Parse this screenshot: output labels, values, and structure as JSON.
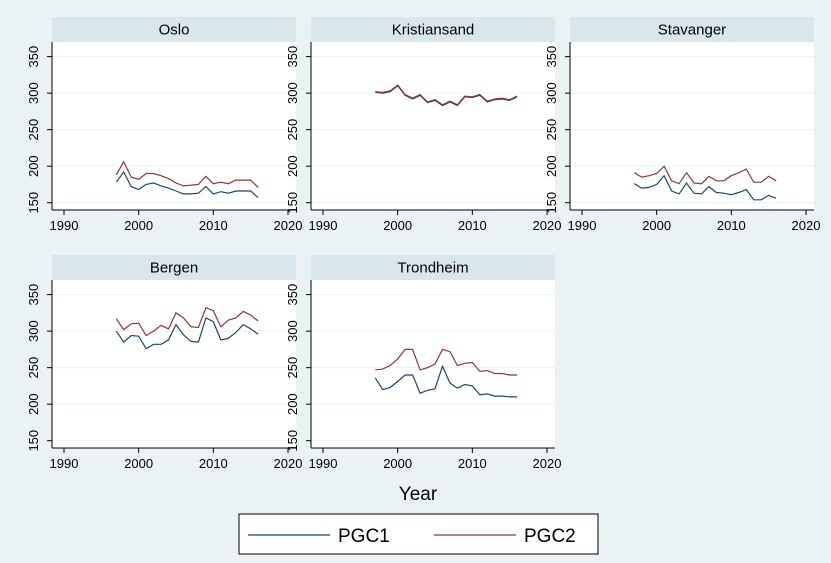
{
  "chart_data": {
    "type": "line",
    "xlabel": "Year",
    "xlim": [
      1990,
      2020
    ],
    "ylim": [
      140,
      370
    ],
    "xticks": [
      1990,
      2000,
      2010,
      2020
    ],
    "yticks": [
      150,
      200,
      250,
      300,
      350
    ],
    "x": [
      1997,
      1998,
      1999,
      2000,
      2001,
      2002,
      2003,
      2004,
      2005,
      2006,
      2007,
      2008,
      2009,
      2010,
      2011,
      2012,
      2013,
      2014,
      2015,
      2016
    ],
    "legend": {
      "position": "bottom",
      "entries": [
        {
          "name": "PGC1",
          "color": "#1a476f"
        },
        {
          "name": "PGC2",
          "color": "#90353b"
        }
      ]
    },
    "panels": [
      {
        "title": "Oslo",
        "series": [
          {
            "name": "PGC1",
            "color": "#1a476f",
            "values": [
              178,
              192,
              172,
              168,
              175,
              177,
              173,
              170,
              166,
              162,
              162,
              163,
              172,
              162,
              165,
              163,
              166,
              166,
              166,
              157
            ]
          },
          {
            "name": "PGC2",
            "color": "#90353b",
            "values": [
              188,
              206,
              185,
              182,
              190,
              190,
              187,
              183,
              177,
              173,
              174,
              175,
              186,
              176,
              178,
              176,
              181,
              181,
              181,
              171
            ]
          }
        ]
      },
      {
        "title": "Kristiansand",
        "series": [
          {
            "name": "PGC1",
            "color": "#1a476f",
            "values": [
              301,
              300,
              302,
              310,
              297,
              292,
              297,
              287,
              290,
              283,
              288,
              283,
              295,
              294,
              297,
              288,
              291,
              292,
              290,
              295
            ]
          },
          {
            "name": "PGC2",
            "color": "#90353b",
            "values": [
              302,
              301,
              303,
              311,
              298,
              293,
              298,
              288,
              291,
              284,
              289,
              284,
              296,
              295,
              298,
              289,
              292,
              293,
              291,
              296
            ]
          }
        ]
      },
      {
        "title": "Stavanger",
        "series": [
          {
            "name": "PGC1",
            "color": "#1a476f",
            "values": [
              176,
              170,
              171,
              175,
              187,
              166,
              162,
              177,
              163,
              162,
              172,
              164,
              163,
              161,
              164,
              168,
              154,
              154,
              160,
              156
            ]
          },
          {
            "name": "PGC2",
            "color": "#90353b",
            "values": [
              191,
              185,
              187,
              190,
              200,
              180,
              176,
              191,
              177,
              176,
              186,
              180,
              180,
              187,
              191,
              196,
              178,
              178,
              186,
              180
            ]
          }
        ]
      },
      {
        "title": "Bergen",
        "series": [
          {
            "name": "PGC1",
            "color": "#1a476f",
            "values": [
              300,
              285,
              294,
              293,
              276,
              282,
              282,
              288,
              309,
              295,
              286,
              285,
              318,
              313,
              288,
              290,
              298,
              309,
              303,
              296
            ]
          },
          {
            "name": "PGC2",
            "color": "#90353b",
            "values": [
              317,
              302,
              310,
              311,
              294,
              300,
              308,
              303,
              325,
              318,
              306,
              305,
              332,
              328,
              306,
              315,
              318,
              327,
              322,
              314
            ]
          }
        ]
      },
      {
        "title": "Trondheim",
        "series": [
          {
            "name": "PGC1",
            "color": "#1a476f",
            "values": [
              236,
              220,
              223,
              231,
              240,
              240,
              215,
              219,
              221,
              252,
              229,
              222,
              227,
              225,
              213,
              214,
              211,
              211,
              210,
              210
            ]
          },
          {
            "name": "PGC2",
            "color": "#90353b",
            "values": [
              247,
              248,
              253,
              262,
              275,
              275,
              247,
              250,
              255,
              275,
              272,
              253,
              256,
              257,
              245,
              246,
              242,
              242,
              240,
              240
            ]
          }
        ]
      }
    ]
  }
}
